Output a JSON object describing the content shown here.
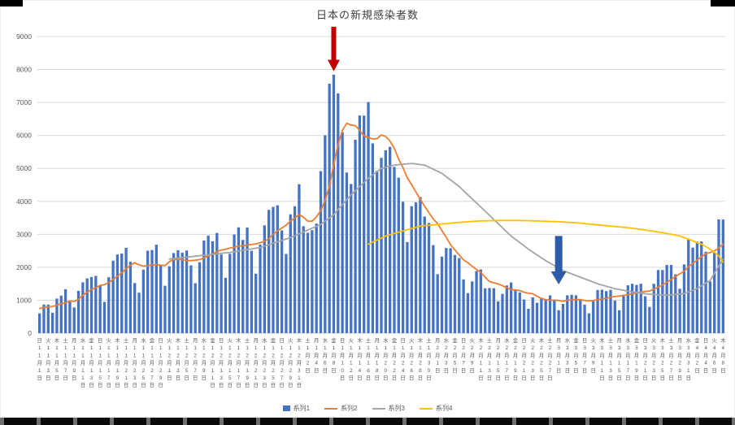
{
  "chart_data": {
    "type": "bar",
    "title": "日本の新規感染者数",
    "ylim": [
      0,
      9000
    ],
    "yticks": [
      0,
      1000,
      2000,
      3000,
      4000,
      5000,
      6000,
      7000,
      8000,
      9000
    ],
    "grid": true,
    "legend_position": "bottom",
    "style": {
      "grid_color": "#d9d9d9",
      "axis_text_color": "#595959",
      "background": "#ffffff"
    },
    "x_labels": [
      [
        "日",
        "11",
        "1"
      ],
      [
        "火",
        "11",
        "3"
      ],
      [
        "木",
        "11",
        "5"
      ],
      [
        "土",
        "11",
        "7"
      ],
      [
        "月",
        "11",
        "9"
      ],
      [
        "水",
        "11",
        "11"
      ],
      [
        "金",
        "11",
        "13"
      ],
      [
        "日",
        "11",
        "15"
      ],
      [
        "火",
        "11",
        "17"
      ],
      [
        "木",
        "11",
        "19"
      ],
      [
        "土",
        "11",
        "21"
      ],
      [
        "月",
        "11",
        "23"
      ],
      [
        "水",
        "11",
        "25"
      ],
      [
        "金",
        "11",
        "27"
      ],
      [
        "日",
        "11",
        "29"
      ],
      [
        "火",
        "12",
        "1"
      ],
      [
        "木",
        "12",
        "3"
      ],
      [
        "土",
        "12",
        "5"
      ],
      [
        "月",
        "12",
        "7"
      ],
      [
        "水",
        "12",
        "9"
      ],
      [
        "金",
        "12",
        "11"
      ],
      [
        "日",
        "12",
        "13"
      ],
      [
        "火",
        "12",
        "15"
      ],
      [
        "木",
        "12",
        "17"
      ],
      [
        "土",
        "12",
        "19"
      ],
      [
        "月",
        "12",
        "21"
      ],
      [
        "水",
        "12",
        "23"
      ],
      [
        "金",
        "12",
        "25"
      ],
      [
        "日",
        "12",
        "27"
      ],
      [
        "火",
        "12",
        "29"
      ],
      [
        "木",
        "12",
        "31"
      ],
      [
        "土",
        "1",
        "2"
      ],
      [
        "月",
        "1",
        "4"
      ],
      [
        "水",
        "1",
        "6"
      ],
      [
        "金",
        "1",
        "8"
      ],
      [
        "日",
        "1",
        "10"
      ],
      [
        "火",
        "1",
        "12"
      ],
      [
        "木",
        "1",
        "14"
      ],
      [
        "土",
        "1",
        "16"
      ],
      [
        "月",
        "1",
        "18"
      ],
      [
        "水",
        "1",
        "20"
      ],
      [
        "金",
        "1",
        "22"
      ],
      [
        "日",
        "1",
        "24"
      ],
      [
        "火",
        "1",
        "26"
      ],
      [
        "木",
        "1",
        "28"
      ],
      [
        "土",
        "1",
        "30"
      ],
      [
        "月",
        "2",
        "1"
      ],
      [
        "水",
        "2",
        "3"
      ],
      [
        "金",
        "2",
        "5"
      ],
      [
        "日",
        "2",
        "7"
      ],
      [
        "火",
        "2",
        "9"
      ],
      [
        "木",
        "2",
        "11"
      ],
      [
        "土",
        "2",
        "13"
      ],
      [
        "月",
        "2",
        "15"
      ],
      [
        "水",
        "2",
        "17"
      ],
      [
        "金",
        "2",
        "19"
      ],
      [
        "日",
        "2",
        "21"
      ],
      [
        "火",
        "2",
        "23"
      ],
      [
        "木",
        "2",
        "25"
      ],
      [
        "土",
        "2",
        "27"
      ],
      [
        "月",
        "3",
        "1"
      ],
      [
        "水",
        "3",
        "3"
      ],
      [
        "金",
        "3",
        "5"
      ],
      [
        "日",
        "3",
        "7"
      ],
      [
        "火",
        "3",
        "9"
      ],
      [
        "木",
        "3",
        "11"
      ],
      [
        "土",
        "3",
        "13"
      ],
      [
        "月",
        "3",
        "15"
      ],
      [
        "水",
        "3",
        "17"
      ],
      [
        "金",
        "3",
        "19"
      ],
      [
        "日",
        "3",
        "21"
      ],
      [
        "火",
        "3",
        "23"
      ],
      [
        "木",
        "3",
        "25"
      ],
      [
        "土",
        "3",
        "27"
      ],
      [
        "月",
        "3",
        "29"
      ],
      [
        "水",
        "3",
        "31"
      ],
      [
        "金",
        "4",
        "2"
      ],
      [
        "日",
        "4",
        "4"
      ],
      [
        "火",
        "4",
        "6"
      ],
      [
        "木",
        "4",
        "8"
      ]
    ],
    "series": [
      {
        "name": "系列1",
        "type": "bar",
        "color": "#4472C4",
        "values": [
          600,
          870,
          867,
          620,
          1050,
          1140,
          1331,
          957,
          780,
          1284,
          1543,
          1660,
          1704,
          1738,
          1440,
          950,
          1699,
          2201,
          2386,
          2418,
          2592,
          2168,
          1521,
          1229,
          1930,
          2503,
          2525,
          2684,
          2058,
          1438,
          2030,
          2430,
          2518,
          2442,
          2508,
          2058,
          1515,
          2152,
          2811,
          2962,
          2787,
          3041,
          2387,
          1680,
          2410,
          2994,
          3211,
          2829,
          3206,
          2501,
          1805,
          2688,
          3271,
          3742,
          3832,
          3881,
          3118,
          2403,
          3607,
          3852,
          4520,
          3246,
          3044,
          3127,
          3325,
          4915,
          6004,
          7570,
          7844,
          7278,
          6097,
          4875,
          4527,
          5870,
          6607,
          6600,
          7014,
          5759,
          4925,
          5320,
          5549,
          5653,
          5045,
          4717,
          3988,
          2764,
          3853,
          3971,
          4133,
          3539,
          3344,
          2673,
          1792,
          2324,
          2585,
          2577,
          2372,
          2279,
          1632,
          1216,
          1571,
          1887,
          1933,
          1362,
          1371,
          1364,
          965,
          1194,
          1448,
          1538,
          1301,
          1234,
          1022,
          739,
          1087,
          922,
          1076,
          1031,
          1147,
          999,
          697,
          888,
          1148,
          1165,
          1150,
          1040,
          866,
          601,
          972,
          1310,
          1320,
          1276,
          1316,
          988,
          695,
          1131,
          1451,
          1499,
          1464,
          1501,
          1119,
          796,
          1498,
          1916,
          1917,
          2070,
          2072,
          1785,
          1348,
          2087,
          2843,
          2597,
          2779,
          2783,
          2470,
          1571,
          2447,
          3451,
          3448
        ]
      },
      {
        "name": "系列2",
        "type": "line",
        "color": "#ED7D31",
        "values": [
          750,
          780,
          800,
          810,
          850,
          890,
          925,
          976,
          964,
          1023,
          1155,
          1242,
          1323,
          1381,
          1450,
          1474,
          1533,
          1627,
          1731,
          1833,
          1955,
          2059,
          2141,
          2074,
          2035,
          2052,
          2067,
          2080,
          2064,
          2052,
          2167,
          2238,
          2240,
          2229,
          2203,
          2203,
          2214,
          2232,
          2286,
          2350,
          2399,
          2475,
          2522,
          2546,
          2583,
          2609,
          2644,
          2650,
          2674,
          2690,
          2708,
          2748,
          2787,
          2863,
          3006,
          3103,
          3191,
          3276,
          3408,
          3491,
          3602,
          3518,
          3399,
          3400,
          3532,
          3718,
          4026,
          4462,
          5118,
          5723,
          6148,
          6369,
          6314,
          6294,
          6157,
          5979,
          5941,
          5893,
          5900,
          6014,
          5968,
          5831,
          5609,
          5281,
          5028,
          4719,
          4510,
          4284,
          4067,
          3852,
          3656,
          3468,
          3329,
          3111,
          2913,
          2691,
          2524,
          2372,
          2223,
          2141,
          2033,
          1933,
          1841,
          1697,
          1567,
          1529,
          1493,
          1439,
          1377,
          1320,
          1312,
          1292,
          1243,
          1211,
          1196,
          1120,
          1054,
          1016,
          1003,
          1000,
          994,
          966,
          998,
          1011,
          1028,
          1012,
          993,
          980,
          992,
          1015,
          1037,
          1055,
          1094,
          1112,
          1125,
          1148,
          1168,
          1194,
          1221,
          1247,
          1266,
          1280,
          1333,
          1399,
          1459,
          1545,
          1627,
          1722,
          1801,
          1885,
          2017,
          2115,
          2216,
          2317,
          2415,
          2447,
          2499,
          2585,
          2707
        ]
      },
      {
        "name": "系列3",
        "type": "line",
        "color": "#A5A5A5",
        "values": [
          null,
          null,
          null,
          null,
          null,
          null,
          null,
          null,
          null,
          null,
          null,
          null,
          null,
          null,
          null,
          null,
          null,
          null,
          null,
          null,
          null,
          null,
          null,
          null,
          null,
          null,
          null,
          null,
          null,
          null,
          2250,
          2264,
          2279,
          2293,
          2307,
          2321,
          2336,
          2350,
          2364,
          2379,
          2393,
          2407,
          2421,
          2436,
          2450,
          2471,
          2493,
          2514,
          2536,
          2557,
          2579,
          2600,
          2643,
          2686,
          2729,
          2771,
          2814,
          2857,
          2900,
          2957,
          3014,
          3071,
          3129,
          3186,
          3243,
          3300,
          3400,
          3500,
          3600,
          3750,
          3900,
          4050,
          4200,
          4325,
          4450,
          4575,
          4700,
          4800,
          4900,
          5000,
          5033,
          5067,
          5100,
          5113,
          5125,
          5138,
          5150,
          5133,
          5117,
          5100,
          5038,
          4975,
          4913,
          4850,
          4750,
          4650,
          4550,
          4450,
          4325,
          4200,
          4075,
          3950,
          3825,
          3700,
          3575,
          3450,
          3325,
          3200,
          3075,
          2950,
          2850,
          2750,
          2650,
          2550,
          2463,
          2375,
          2288,
          2200,
          2125,
          2050,
          1975,
          1900,
          1850,
          1800,
          1750,
          1700,
          1650,
          1600,
          1550,
          1500,
          1463,
          1425,
          1388,
          1350,
          1325,
          1300,
          1275,
          1250,
          1233,
          1215,
          1198,
          1180,
          1173,
          1165,
          1158,
          1150,
          1163,
          1175,
          1188,
          1200,
          1250,
          1300,
          1350,
          1433,
          1517,
          1600,
          1817,
          2033,
          2250
        ]
      },
      {
        "name": "系列4",
        "type": "line",
        "color": "#FFC000",
        "values": [
          null,
          null,
          null,
          null,
          null,
          null,
          null,
          null,
          null,
          null,
          null,
          null,
          null,
          null,
          null,
          null,
          null,
          null,
          null,
          null,
          null,
          null,
          null,
          null,
          null,
          null,
          null,
          null,
          null,
          null,
          null,
          null,
          null,
          null,
          null,
          null,
          null,
          null,
          null,
          null,
          null,
          null,
          null,
          null,
          null,
          null,
          null,
          null,
          null,
          null,
          null,
          null,
          null,
          null,
          null,
          null,
          null,
          null,
          null,
          null,
          null,
          null,
          null,
          null,
          null,
          null,
          null,
          null,
          null,
          null,
          null,
          null,
          null,
          null,
          null,
          null,
          2700,
          2763,
          2825,
          2888,
          2950,
          2988,
          3025,
          3063,
          3100,
          3138,
          3175,
          3213,
          3250,
          3263,
          3275,
          3288,
          3300,
          3313,
          3325,
          3338,
          3350,
          3360,
          3370,
          3380,
          3390,
          3400,
          3404,
          3408,
          3412,
          3416,
          3420,
          3420,
          3420,
          3420,
          3420,
          3420,
          3416,
          3412,
          3408,
          3404,
          3400,
          3395,
          3390,
          3385,
          3380,
          3373,
          3365,
          3358,
          3350,
          3338,
          3325,
          3313,
          3300,
          3288,
          3275,
          3263,
          3250,
          3238,
          3225,
          3213,
          3200,
          3183,
          3165,
          3148,
          3130,
          3110,
          3090,
          3070,
          3050,
          3025,
          3000,
          2975,
          2950,
          2900,
          2850,
          2800,
          2750,
          2700,
          2625,
          2550,
          2450,
          2350,
          2150
        ]
      }
    ],
    "annotations": [
      {
        "name": "peak-arrow",
        "color": "#C00000",
        "index": 68,
        "from_value": 9300,
        "to_value": 7950,
        "shaft_width": 6,
        "head_width": 15,
        "head_length": 14
      },
      {
        "name": "decline-arrow",
        "color": "#2E5BA8",
        "index": 120,
        "from_value": 2950,
        "to_value": 1480,
        "shaft_width": 9,
        "head_width": 19,
        "head_length": 16
      }
    ]
  }
}
